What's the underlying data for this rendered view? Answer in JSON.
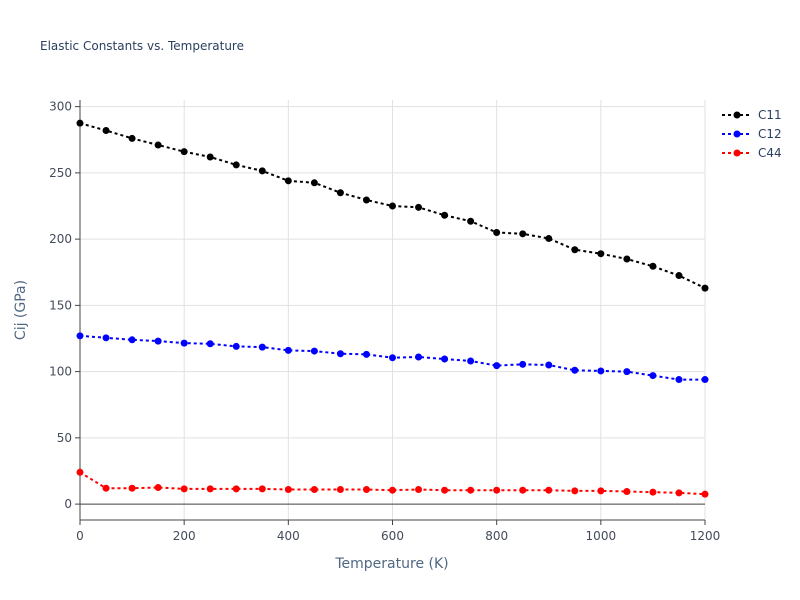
{
  "chart_data": {
    "type": "line",
    "title": "Elastic Constants vs. Temperature",
    "xlabel": "Temperature (K)",
    "ylabel": "Cij (GPa)",
    "xlim": [
      0,
      1200
    ],
    "ylim": [
      -12,
      305
    ],
    "x_ticks": [
      0,
      200,
      400,
      600,
      800,
      1000,
      1200
    ],
    "y_ticks": [
      0,
      50,
      100,
      150,
      200,
      250,
      300
    ],
    "grid": true,
    "legend_position": "top-right",
    "x": [
      0,
      50,
      100,
      150,
      200,
      250,
      300,
      350,
      400,
      450,
      500,
      550,
      600,
      650,
      700,
      750,
      800,
      850,
      900,
      950,
      1000,
      1050,
      1100,
      1150,
      1200
    ],
    "series": [
      {
        "name": "C11",
        "color": "#000000",
        "values": [
          287.5,
          282,
          276,
          271,
          266,
          262,
          256,
          251.5,
          244,
          242.5,
          235,
          229.5,
          225,
          224,
          218,
          213.5,
          205,
          204,
          200.5,
          192,
          189,
          185,
          179.5,
          172.5,
          163
        ]
      },
      {
        "name": "C12",
        "color": "#0000ff",
        "values": [
          127,
          125.5,
          124,
          123,
          121.5,
          121,
          119,
          118.5,
          116,
          115.5,
          113.5,
          113,
          110.5,
          111,
          109.5,
          108,
          104.5,
          105.5,
          105,
          101,
          100.5,
          100,
          97,
          94,
          94
        ]
      },
      {
        "name": "C44",
        "color": "#ff0000",
        "values": [
          24,
          12,
          12,
          12.5,
          11.5,
          11.5,
          11.5,
          11.5,
          11,
          11,
          11,
          11,
          10.5,
          11,
          10.5,
          10.5,
          10.5,
          10.5,
          10.5,
          10,
          10,
          9.5,
          9,
          8.5,
          7.5
        ]
      }
    ]
  }
}
